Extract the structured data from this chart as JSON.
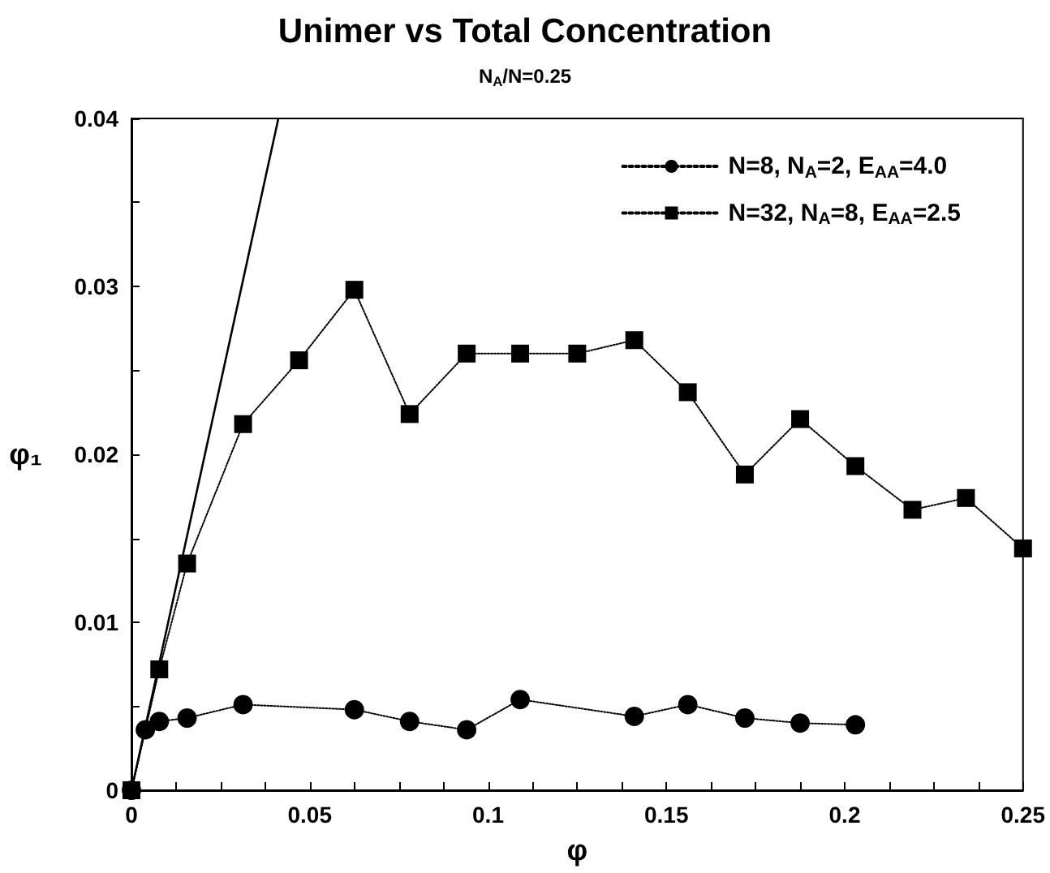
{
  "chart_data": {
    "type": "line",
    "title": "Unimer vs Total Concentration",
    "subtitle": "N$_{A}$/N=0.25",
    "xlabel": "φ",
    "ylabel": "φ₁",
    "xlim": [
      0,
      0.25
    ],
    "xticks": [
      0,
      {
        "value": 0.0125,
        "label": null
      },
      {
        "value": 0.025,
        "label": null
      },
      {
        "value": 0.0375,
        "label": null
      },
      0.05,
      {
        "value": 0.0625,
        "label": null
      },
      {
        "value": 0.075,
        "label": null
      },
      {
        "value": 0.0875,
        "label": null
      },
      0.1,
      {
        "value": 0.1125,
        "label": null
      },
      {
        "value": 0.125,
        "label": null
      },
      {
        "value": 0.1375,
        "label": null
      },
      0.15,
      {
        "value": 0.1625,
        "label": null
      },
      {
        "value": 0.175,
        "label": null
      },
      {
        "value": 0.1875,
        "label": null
      },
      0.2,
      {
        "value": 0.2125,
        "label": null
      },
      {
        "value": 0.225,
        "label": null
      },
      {
        "value": 0.2375,
        "label": null
      },
      0.25
    ],
    "ylim": [
      0,
      0.04
    ],
    "yticks": [
      0,
      {
        "value": 0.005,
        "label": null
      },
      0.01,
      {
        "value": 0.015,
        "label": null
      },
      0.02,
      {
        "value": 0.025,
        "label": null
      },
      0.03,
      {
        "value": 0.035,
        "label": null
      },
      0.04
    ],
    "grid": false,
    "legend": "top right",
    "line_style": "dotted",
    "series": [
      {
        "name": "N=8, N$_{A}$=2, E$_{AA}$=4.0",
        "color": "#000000",
        "marker": "circle",
        "x": [
          0,
          0.0039,
          0.0078,
          0.0156,
          0.0313,
          0.0625,
          0.078,
          0.094,
          0.109,
          0.141,
          0.156,
          0.172,
          0.1875,
          0.203
        ],
        "values": [
          0,
          0.0036,
          0.0041,
          0.0043,
          0.0051,
          0.0048,
          0.0041,
          0.0036,
          0.0054,
          0.0044,
          0.0051,
          0.0043,
          0.004,
          0.0039
        ]
      },
      {
        "name": "N=32, N$_{A}$=8, E$_{AA}$=2.5",
        "color": "#000000",
        "marker": "square",
        "x": [
          0,
          0.0078,
          0.0156,
          0.0313,
          0.047,
          0.0625,
          0.078,
          0.094,
          0.109,
          0.125,
          0.141,
          0.156,
          0.172,
          0.1875,
          0.203,
          0.219,
          0.234,
          0.25
        ],
        "values": [
          0,
          0.0072,
          0.0135,
          0.0218,
          0.0256,
          0.0298,
          0.0224,
          0.026,
          0.026,
          0.026,
          0.0268,
          0.0237,
          0.0188,
          0.0221,
          0.0193,
          0.0167,
          0.0174,
          0.0144
        ]
      },
      {
        "color": "#000000",
        "marker": "none",
        "line_style": "solid",
        "x": [
          0,
          0.0412
        ],
        "values": [
          0,
          0.04
        ]
      }
    ]
  }
}
